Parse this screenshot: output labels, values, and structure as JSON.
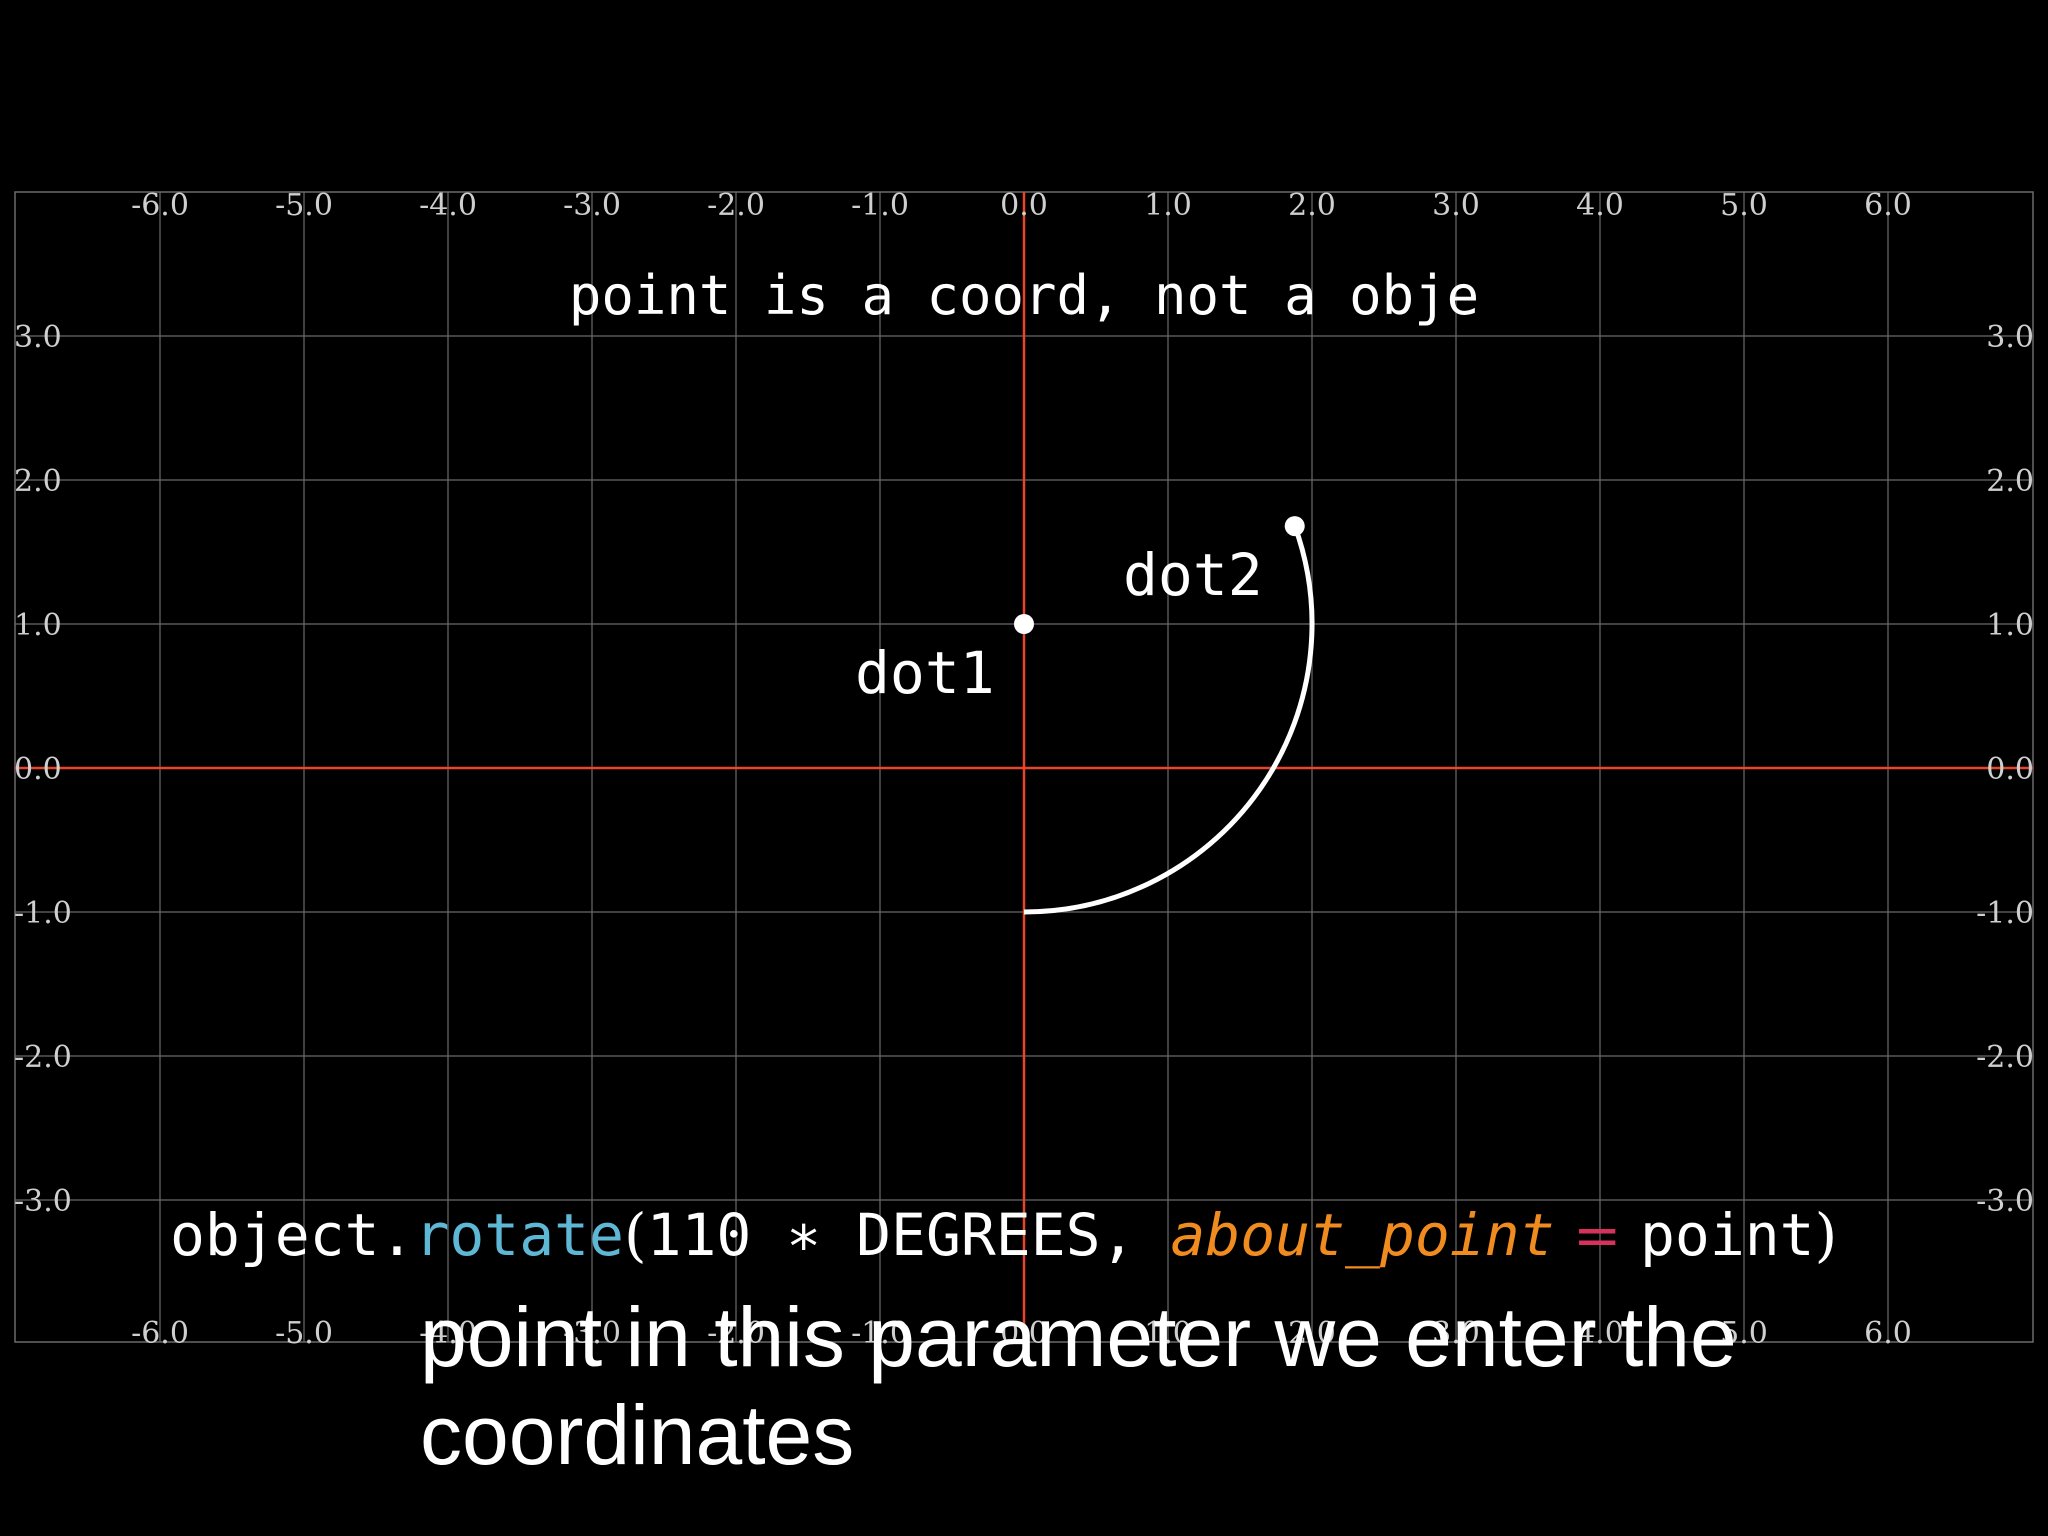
{
  "grid": {
    "x_range": [
      -6,
      6
    ],
    "y_range": [
      -3,
      3
    ],
    "x_ticks": [
      "-6.0",
      "-5.0",
      "-4.0",
      "-3.0",
      "-2.0",
      "-1.0",
      "0.0",
      "1.0",
      "2.0",
      "3.0",
      "4.0",
      "5.0",
      "6.0"
    ],
    "y_ticks": [
      "3.0",
      "2.0",
      "1.0",
      "0.0",
      "-1.0",
      "-2.0",
      "-3.0"
    ],
    "grid_color": "#6a6a6a",
    "axis_color": "#e8452c"
  },
  "title": "point is a coord, not a obje",
  "dots": [
    {
      "label": "dot1",
      "x": 0.0,
      "y": 1.0
    },
    {
      "label": "dot2",
      "x": 1.88,
      "y": 1.68
    }
  ],
  "arc": {
    "start": [
      0.0,
      -1.0
    ],
    "center": [
      0.0,
      1.0
    ],
    "radius": 2.0,
    "angle_degrees": 110
  },
  "code": {
    "object": "object.",
    "method": "rotate",
    "open": "(",
    "arg": "110 ∗ DEGREES, ",
    "kw": "about_point",
    "eq": " = ",
    "val": "point",
    "close": ")",
    "method_color": "#5fb7d6",
    "kw_color": "#f08c1f",
    "eq_color": "#d8315b"
  },
  "caption": "point in this parameter we enter the coordinates"
}
